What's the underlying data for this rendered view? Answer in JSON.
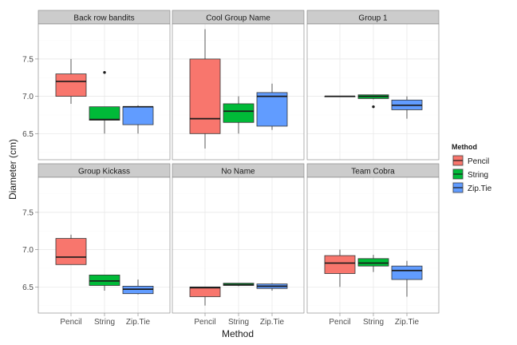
{
  "chart_data": {
    "type": "boxplot",
    "xlabel": "Method",
    "ylabel": "Diameter (cm)",
    "categories": [
      "Pencil",
      "String",
      "Zip.Tie"
    ],
    "y_ticks": [
      "6.5",
      "7.0",
      "7.5"
    ],
    "y_tick_values": [
      6.5,
      7.0,
      7.5
    ],
    "ylim": [
      6.15,
      7.97
    ],
    "grid": true,
    "facets": {
      "ncol": 3,
      "nrow": 2
    },
    "colors": {
      "Pencil": "#f8766d",
      "String": "#00ba38",
      "Zip.Tie": "#619cff"
    },
    "legend": {
      "title": "Method",
      "position": "right",
      "entries": [
        "Pencil",
        "String",
        "Zip.Tie"
      ]
    },
    "panels": [
      {
        "name": "Back row bandits",
        "boxes": [
          {
            "method": "Pencil",
            "whisker_low": 6.9,
            "q1": 7.0,
            "median": 7.2,
            "q3": 7.3,
            "whisker_high": 7.5,
            "outliers": []
          },
          {
            "method": "String",
            "whisker_low": 6.5,
            "q1": 6.68,
            "median": 6.69,
            "q3": 6.86,
            "whisker_high": 6.86,
            "outliers": [
              7.32
            ]
          },
          {
            "method": "Zip.Tie",
            "whisker_low": 6.5,
            "q1": 6.62,
            "median": 6.86,
            "q3": 6.86,
            "whisker_high": 6.88,
            "outliers": []
          }
        ]
      },
      {
        "name": "Cool Group Name",
        "boxes": [
          {
            "method": "Pencil",
            "whisker_low": 6.3,
            "q1": 6.5,
            "median": 6.7,
            "q3": 7.5,
            "whisker_high": 7.9,
            "outliers": []
          },
          {
            "method": "String",
            "whisker_low": 6.5,
            "q1": 6.65,
            "median": 6.8,
            "q3": 6.9,
            "whisker_high": 7.0,
            "outliers": []
          },
          {
            "method": "Zip.Tie",
            "whisker_low": 6.55,
            "q1": 6.6,
            "median": 7.0,
            "q3": 7.05,
            "whisker_high": 7.17,
            "outliers": []
          }
        ]
      },
      {
        "name": "Group 1",
        "boxes": [
          {
            "method": "Pencil",
            "whisker_low": 7.0,
            "q1": 7.0,
            "median": 7.0,
            "q3": 7.0,
            "whisker_high": 7.0,
            "outliers": []
          },
          {
            "method": "String",
            "whisker_low": 6.96,
            "q1": 6.97,
            "median": 7.0,
            "q3": 7.02,
            "whisker_high": 7.02,
            "outliers": [
              6.86
            ]
          },
          {
            "method": "Zip.Tie",
            "whisker_low": 6.7,
            "q1": 6.82,
            "median": 6.88,
            "q3": 6.95,
            "whisker_high": 7.0,
            "outliers": []
          }
        ]
      },
      {
        "name": "Group Kickass",
        "boxes": [
          {
            "method": "Pencil",
            "whisker_low": 6.8,
            "q1": 6.8,
            "median": 6.9,
            "q3": 7.15,
            "whisker_high": 7.2,
            "outliers": []
          },
          {
            "method": "String",
            "whisker_low": 6.45,
            "q1": 6.52,
            "median": 6.58,
            "q3": 6.66,
            "whisker_high": 6.66,
            "outliers": []
          },
          {
            "method": "Zip.Tie",
            "whisker_low": 6.4,
            "q1": 6.41,
            "median": 6.47,
            "q3": 6.51,
            "whisker_high": 6.6,
            "outliers": []
          }
        ]
      },
      {
        "name": "No Name",
        "boxes": [
          {
            "method": "Pencil",
            "whisker_low": 6.25,
            "q1": 6.37,
            "median": 6.49,
            "q3": 6.5,
            "whisker_high": 6.5,
            "outliers": []
          },
          {
            "method": "String",
            "whisker_low": 6.51,
            "q1": 6.52,
            "median": 6.53,
            "q3": 6.55,
            "whisker_high": 6.55,
            "outliers": []
          },
          {
            "method": "Zip.Tie",
            "whisker_low": 6.45,
            "q1": 6.48,
            "median": 6.51,
            "q3": 6.54,
            "whisker_high": 6.55,
            "outliers": []
          }
        ]
      },
      {
        "name": "Team Cobra",
        "boxes": [
          {
            "method": "Pencil",
            "whisker_low": 6.5,
            "q1": 6.68,
            "median": 6.82,
            "q3": 6.92,
            "whisker_high": 7.0,
            "outliers": []
          },
          {
            "method": "String",
            "whisker_low": 6.7,
            "q1": 6.78,
            "median": 6.82,
            "q3": 6.88,
            "whisker_high": 6.93,
            "outliers": []
          },
          {
            "method": "Zip.Tie",
            "whisker_low": 6.37,
            "q1": 6.6,
            "median": 6.72,
            "q3": 6.78,
            "whisker_high": 6.85,
            "outliers": []
          }
        ]
      }
    ]
  }
}
